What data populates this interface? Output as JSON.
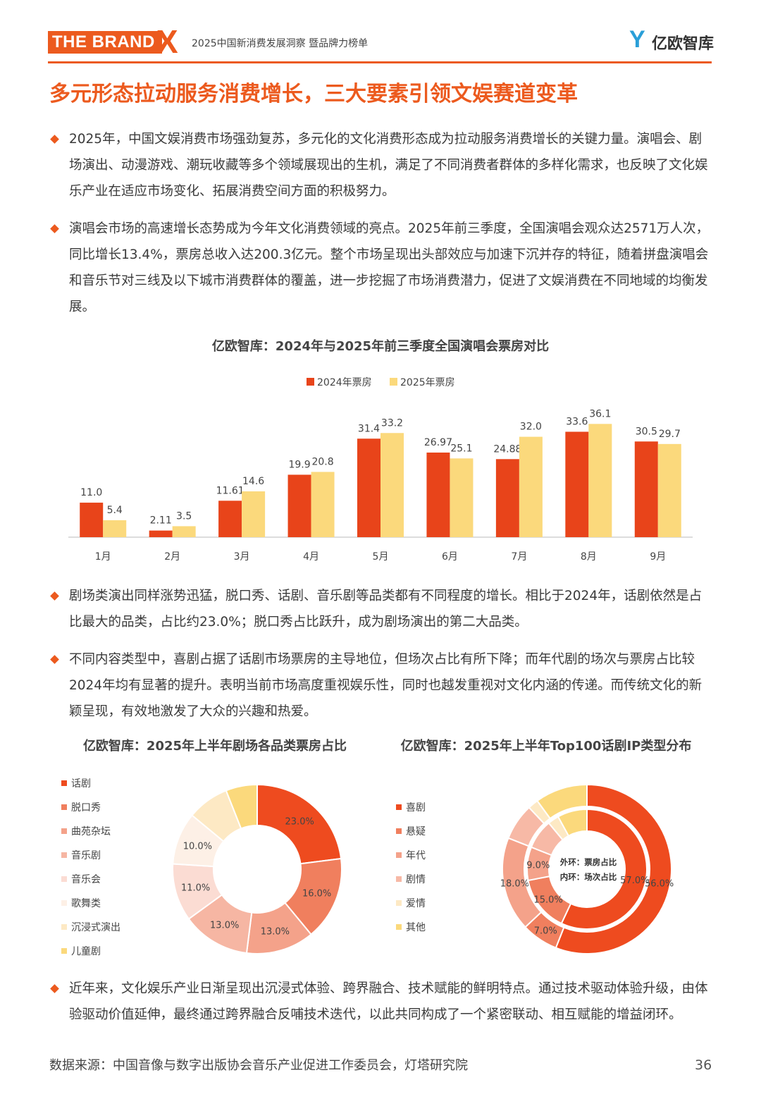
{
  "header": {
    "brand": "THE BRAND",
    "brand_mark": "X",
    "report": "2025中国新消费发展洞察 暨品牌力榜单",
    "logo": "亿欧智库"
  },
  "title": "多元形态拉动服务消费增长，三大要素引领文娱赛道变革",
  "paragraphs": [
    "2025年，中国文娱消费市场强劲复苏，多元化的文化消费形态成为拉动服务消费增长的关键力量。演唱会、剧场演出、动漫游戏、潮玩收藏等多个领域展现出的生机，满足了不同消费者群体的多样化需求，也反映了文化娱乐产业在适应市场变化、拓展消费空间方面的积极努力。",
    "演唱会市场的高速增长态势成为今年文化消费领域的亮点。2025年前三季度，全国演唱会观众达2571万人次，同比增长13.4%，票房总收入达200.3亿元。整个市场呈现出头部效应与加速下沉并存的特征，随着拼盘演唱会和音乐节对三线及以下城市消费群体的覆盖，进一步挖掘了市场消费潜力，促进了文娱消费在不同地域的均衡发展。",
    "剧场类演出同样涨势迅猛，脱口秀、话剧、音乐剧等品类都有不同程度的增长。相比于2024年，话剧依然是占比最大的品类，占比约23.0%；脱口秀占比跃升，成为剧场演出的第二大品类。",
    "不同内容类型中，喜剧占据了话剧市场票房的主导地位，但场次占比有所下降；而年代剧的场次与票房占比较2024年均有显著的提升。表明当前市场高度重视娱乐性，同时也越发重视对文化内涵的传递。而传统文化的新颖呈现，有效地激发了大众的兴趣和热爱。",
    "近年来，文化娱乐产业日渐呈现出沉浸式体验、跨界融合、技术赋能的鲜明特点。通过技术驱动体验升级，由体验驱动价值延伸，最终通过跨界融合反哺技术迭代，以此共同构成了一个紧密联动、相互赋能的增益闭环。"
  ],
  "chart_data": [
    {
      "type": "bar",
      "title": "亿欧智库：2024年与2025年前三季度全国演唱会票房对比",
      "categories": [
        "1月",
        "2月",
        "3月",
        "4月",
        "5月",
        "6月",
        "7月",
        "8月",
        "9月"
      ],
      "series": [
        {
          "name": "2024年票房",
          "color": "#e8441a",
          "values": [
            11.0,
            2.11,
            11.61,
            19.9,
            31.4,
            26.97,
            24.88,
            33.6,
            30.5
          ],
          "value_labels": [
            "11.0",
            "2.11",
            "11.61",
            "19.9",
            "31.4",
            "26.97",
            "24.88",
            "33.6",
            "30.5"
          ]
        },
        {
          "name": "2025年票房",
          "color": "#fbd97c",
          "values": [
            5.4,
            3.5,
            14.6,
            20.8,
            33.2,
            25.1,
            32.0,
            36.1,
            29.7
          ],
          "value_labels": [
            "5.4",
            "3.5",
            "14.6",
            "20.8",
            "33.2",
            "25.1",
            "32.0",
            "36.1",
            "29.7"
          ]
        }
      ],
      "ylim": [
        0,
        40
      ]
    },
    {
      "type": "donut",
      "title": "亿欧智库：2025年上半年剧场各品类票房占比",
      "categories": [
        "话剧",
        "脱口秀",
        "曲苑杂坛",
        "音乐剧",
        "音乐会",
        "歌舞类",
        "沉浸式演出",
        "儿童剧"
      ],
      "colors": [
        "#ee4b1f",
        "#f07f5e",
        "#f4a28a",
        "#f6b6a3",
        "#fbdcd3",
        "#fdf0e6",
        "#fde9c4",
        "#fbd97c"
      ],
      "values": [
        23,
        16,
        13,
        13,
        11,
        10,
        8,
        6
      ],
      "value_labels": [
        "23.0%",
        "16.0%",
        "13.0%",
        "13.0%",
        "11.0%",
        "10.0%",
        null,
        null
      ]
    },
    {
      "type": "nested-donut",
      "title": "亿欧智库：2025年上半年Top100话剧IP类型分布",
      "categories": [
        "喜剧",
        "悬疑",
        "年代",
        "剧情",
        "爱情",
        "其他"
      ],
      "colors": [
        "#ee4b1f",
        "#f07f5e",
        "#f4a28a",
        "#f7b9a6",
        "#fde9c4",
        "#fbd97c"
      ],
      "rings": [
        {
          "label": "外环：票房占比",
          "values": [
            56,
            7,
            18,
            7,
            2,
            10
          ],
          "value_labels": [
            "56.0%",
            "7.0%",
            "18.0%",
            null,
            null,
            null
          ]
        },
        {
          "label": "内环：场次占比",
          "values": [
            57,
            15,
            9,
            8,
            3,
            8
          ],
          "value_labels": [
            "57.0%",
            "15.0%",
            "9.0%",
            null,
            null,
            null
          ]
        }
      ]
    }
  ],
  "footer": {
    "source": "数据来源：中国音像与数字出版协会音乐产业促进工作委员会，灯塔研究院",
    "page": 36
  }
}
